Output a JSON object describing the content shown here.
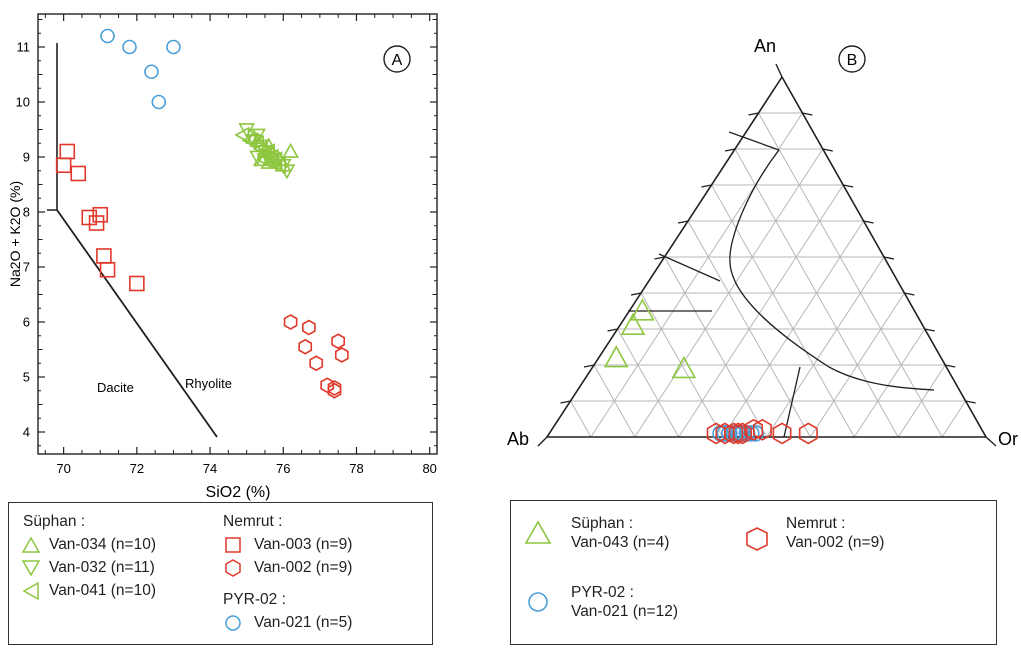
{
  "chart_data": [
    {
      "type": "scatter",
      "panel_label": "A",
      "xlabel": "SiO2 (%)",
      "ylabel": "Na2O + K2O (%)",
      "xlim": [
        69.3,
        80.2
      ],
      "ylim": [
        3.6,
        11.6
      ],
      "x_ticks": [
        "70",
        "72",
        "74",
        "76",
        "78",
        "80"
      ],
      "y_ticks": [
        "4",
        "5",
        "6",
        "7",
        "8",
        "9",
        "10",
        "11"
      ],
      "field_labels": [
        "Dacite",
        "Rhyolite"
      ],
      "series": [
        {
          "name": "Van-034 (n=10)",
          "group": "Süphan",
          "marker": "triangle-up",
          "color": "#8dc63f",
          "points": [
            [
              75.3,
              9.3
            ],
            [
              75.5,
              9.1
            ],
            [
              75.6,
              9.2
            ],
            [
              75.4,
              8.95
            ],
            [
              75.7,
              9.05
            ],
            [
              75.9,
              8.95
            ],
            [
              76.2,
              9.1
            ],
            [
              76.0,
              8.85
            ],
            [
              75.2,
              9.35
            ],
            [
              75.6,
              8.9
            ]
          ]
        },
        {
          "name": "Van-032 (n=11)",
          "group": "Süphan",
          "marker": "triangle-down",
          "color": "#8dc63f",
          "points": [
            [
              75.0,
              9.5
            ],
            [
              75.2,
              9.3
            ],
            [
              75.3,
              9.4
            ],
            [
              75.4,
              9.2
            ],
            [
              75.5,
              9.1
            ],
            [
              75.6,
              9.0
            ],
            [
              75.7,
              8.95
            ],
            [
              75.8,
              8.9
            ],
            [
              76.0,
              8.85
            ],
            [
              76.1,
              8.75
            ],
            [
              75.3,
              9.0
            ]
          ]
        },
        {
          "name": "Van-041 (n=10)",
          "group": "Süphan",
          "marker": "triangle-left",
          "color": "#8dc63f",
          "points": [
            [
              74.9,
              9.4
            ],
            [
              75.1,
              9.3
            ],
            [
              75.3,
              9.25
            ],
            [
              75.4,
              9.15
            ],
            [
              75.5,
              9.05
            ],
            [
              75.6,
              9.1
            ],
            [
              75.7,
              9.0
            ],
            [
              75.8,
              8.95
            ],
            [
              75.9,
              8.85
            ],
            [
              75.5,
              8.95
            ]
          ]
        },
        {
          "name": "Van-003 (n=9)",
          "group": "Nemrut",
          "marker": "square",
          "color": "#e0392b",
          "points": [
            [
              70.1,
              9.1
            ],
            [
              70.0,
              8.85
            ],
            [
              70.4,
              8.7
            ],
            [
              70.7,
              7.9
            ],
            [
              70.9,
              7.8
            ],
            [
              71.0,
              7.95
            ],
            [
              71.1,
              7.2
            ],
            [
              71.2,
              6.95
            ],
            [
              72.0,
              6.7
            ]
          ]
        },
        {
          "name": "Van-002 (n=9)",
          "group": "Nemrut",
          "marker": "hexagon",
          "color": "#e0392b",
          "points": [
            [
              76.2,
              6.0
            ],
            [
              76.7,
              5.9
            ],
            [
              76.6,
              5.55
            ],
            [
              76.9,
              5.25
            ],
            [
              77.2,
              4.85
            ],
            [
              77.4,
              4.8
            ],
            [
              77.5,
              5.65
            ],
            [
              77.6,
              5.4
            ],
            [
              77.4,
              4.75
            ]
          ]
        },
        {
          "name": "Van-021 (n=5)",
          "group": "PYR-02",
          "marker": "circle",
          "color": "#4a9fd8",
          "points": [
            [
              71.2,
              11.2
            ],
            [
              71.8,
              11.0
            ],
            [
              72.4,
              10.55
            ],
            [
              72.6,
              10.0
            ],
            [
              73.0,
              11.0
            ]
          ]
        }
      ],
      "legend_groups": [
        {
          "title": "Süphan :",
          "items": [
            "Van-034 (n=10)",
            "Van-032 (n=11)",
            "Van-041 (n=10)"
          ]
        },
        {
          "title": "Nemrut :",
          "items": [
            "Van-003 (n=9)",
            "Van-002 (n=9)"
          ]
        },
        {
          "title": "PYR-02 :",
          "items": [
            "Van-021 (n=5)"
          ]
        }
      ]
    },
    {
      "type": "scatter",
      "subtype": "ternary",
      "panel_label": "B",
      "apex_labels": {
        "top": "An",
        "left": "Ab",
        "right": "Or"
      },
      "coordinates": "fraction [An, Ab, Or]",
      "series": [
        {
          "name": "Van-043 (n=4)",
          "group": "Süphan",
          "marker": "triangle-up",
          "color": "#8dc63f",
          "points": [
            [
              0.35,
              0.62,
              0.03
            ],
            [
              0.31,
              0.66,
              0.03
            ],
            [
              0.22,
              0.74,
              0.04
            ],
            [
              0.19,
              0.6,
              0.21
            ]
          ]
        },
        {
          "name": "Van-021 (n=12)",
          "group": "PYR-02",
          "marker": "circle",
          "color": "#4a9fd8",
          "points": [
            [
              0.01,
              0.6,
              0.39
            ],
            [
              0.01,
              0.59,
              0.4
            ],
            [
              0.01,
              0.58,
              0.41
            ],
            [
              0.01,
              0.57,
              0.42
            ],
            [
              0.01,
              0.56,
              0.43
            ],
            [
              0.01,
              0.55,
              0.44
            ],
            [
              0.01,
              0.54,
              0.45
            ],
            [
              0.01,
              0.53,
              0.46
            ],
            [
              0.01,
              0.52,
              0.47
            ],
            [
              0.01,
              0.56,
              0.43
            ],
            [
              0.01,
              0.54,
              0.45
            ],
            [
              0.01,
              0.58,
              0.41
            ]
          ]
        },
        {
          "name": "Van-002 (n=9)",
          "group": "Nemrut",
          "marker": "hexagon",
          "color": "#e0392b",
          "points": [
            [
              0.01,
              0.61,
              0.38
            ],
            [
              0.01,
              0.59,
              0.4
            ],
            [
              0.01,
              0.57,
              0.42
            ],
            [
              0.01,
              0.56,
              0.43
            ],
            [
              0.02,
              0.52,
              0.46
            ],
            [
              0.02,
              0.5,
              0.48
            ],
            [
              0.01,
              0.46,
              0.53
            ],
            [
              0.01,
              0.4,
              0.59
            ],
            [
              0.01,
              0.55,
              0.44
            ]
          ]
        }
      ],
      "legend_groups": [
        {
          "title": "Süphan :",
          "items": [
            "Van-043 (n=4)"
          ]
        },
        {
          "title": "Nemrut :",
          "items": [
            "Van-002 (n=9)"
          ]
        },
        {
          "title": "PYR-02 :",
          "items": [
            "Van-021 (n=12)"
          ]
        }
      ]
    }
  ]
}
